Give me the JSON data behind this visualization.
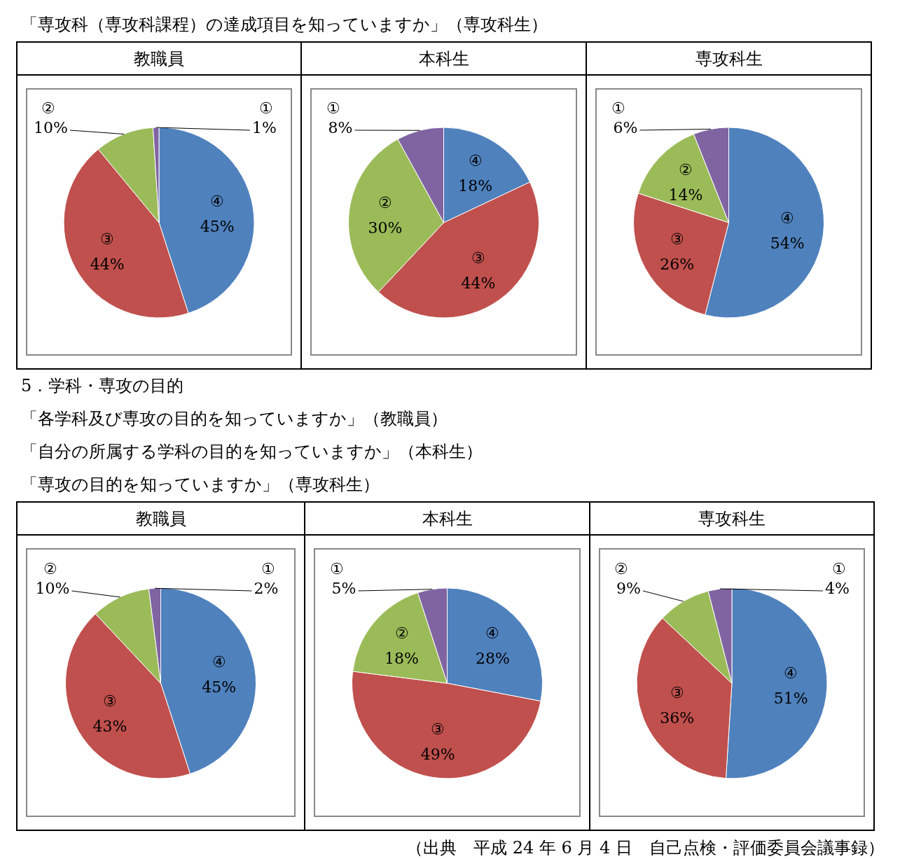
{
  "chart_data": [
    {
      "type": "pie",
      "title": "教職員",
      "annotations": [
        "「専攻科（専攻科課程）の達成項目を知っていますか」（専攻科生）"
      ],
      "categories": [
        "④",
        "③",
        "②",
        "①"
      ],
      "values": [
        45,
        44,
        10,
        1
      ],
      "value_labels": [
        "45%",
        "44%",
        "10%",
        "1%"
      ],
      "colors": [
        "#4f81bd",
        "#c0504d",
        "#9bbb59",
        "#8064a2"
      ]
    },
    {
      "type": "pie",
      "title": "本科生",
      "categories": [
        "④",
        "③",
        "②",
        "①"
      ],
      "values": [
        18,
        44,
        30,
        8
      ],
      "value_labels": [
        "18%",
        "44%",
        "30%",
        "8%"
      ],
      "colors": [
        "#4f81bd",
        "#c0504d",
        "#9bbb59",
        "#8064a2"
      ]
    },
    {
      "type": "pie",
      "title": "専攻科生",
      "categories": [
        "④",
        "③",
        "②",
        "①"
      ],
      "values": [
        54,
        26,
        14,
        6
      ],
      "value_labels": [
        "54%",
        "26%",
        "14%",
        "6%"
      ],
      "colors": [
        "#4f81bd",
        "#c0504d",
        "#9bbb59",
        "#8064a2"
      ]
    },
    {
      "type": "pie",
      "title": "教職員",
      "annotations": [
        "5．学科・専攻の目的",
        "「各学科及び専攻の目的を知っていますか」（教職員）",
        "「自分の所属する学科の目的を知っていますか」（本科生）",
        "「専攻の目的を知っていますか」（専攻科生）"
      ],
      "categories": [
        "④",
        "③",
        "②",
        "①"
      ],
      "values": [
        45,
        43,
        10,
        2
      ],
      "value_labels": [
        "45%",
        "43%",
        "10%",
        "2%"
      ],
      "colors": [
        "#4f81bd",
        "#c0504d",
        "#9bbb59",
        "#8064a2"
      ]
    },
    {
      "type": "pie",
      "title": "本科生",
      "categories": [
        "④",
        "③",
        "②",
        "①"
      ],
      "values": [
        28,
        49,
        18,
        5
      ],
      "value_labels": [
        "28%",
        "49%",
        "18%",
        "5%"
      ],
      "colors": [
        "#4f81bd",
        "#c0504d",
        "#9bbb59",
        "#8064a2"
      ]
    },
    {
      "type": "pie",
      "title": "専攻科生",
      "annotations": [
        "（出典　平成 24 年 6 月 4 日　自己点検・評価委員会議事録）"
      ],
      "categories": [
        "④",
        "③",
        "②",
        "①"
      ],
      "values": [
        51,
        36,
        9,
        4
      ],
      "value_labels": [
        "51%",
        "36%",
        "9%",
        "4%"
      ],
      "colors": [
        "#4f81bd",
        "#c0504d",
        "#9bbb59",
        "#8064a2"
      ]
    }
  ]
}
